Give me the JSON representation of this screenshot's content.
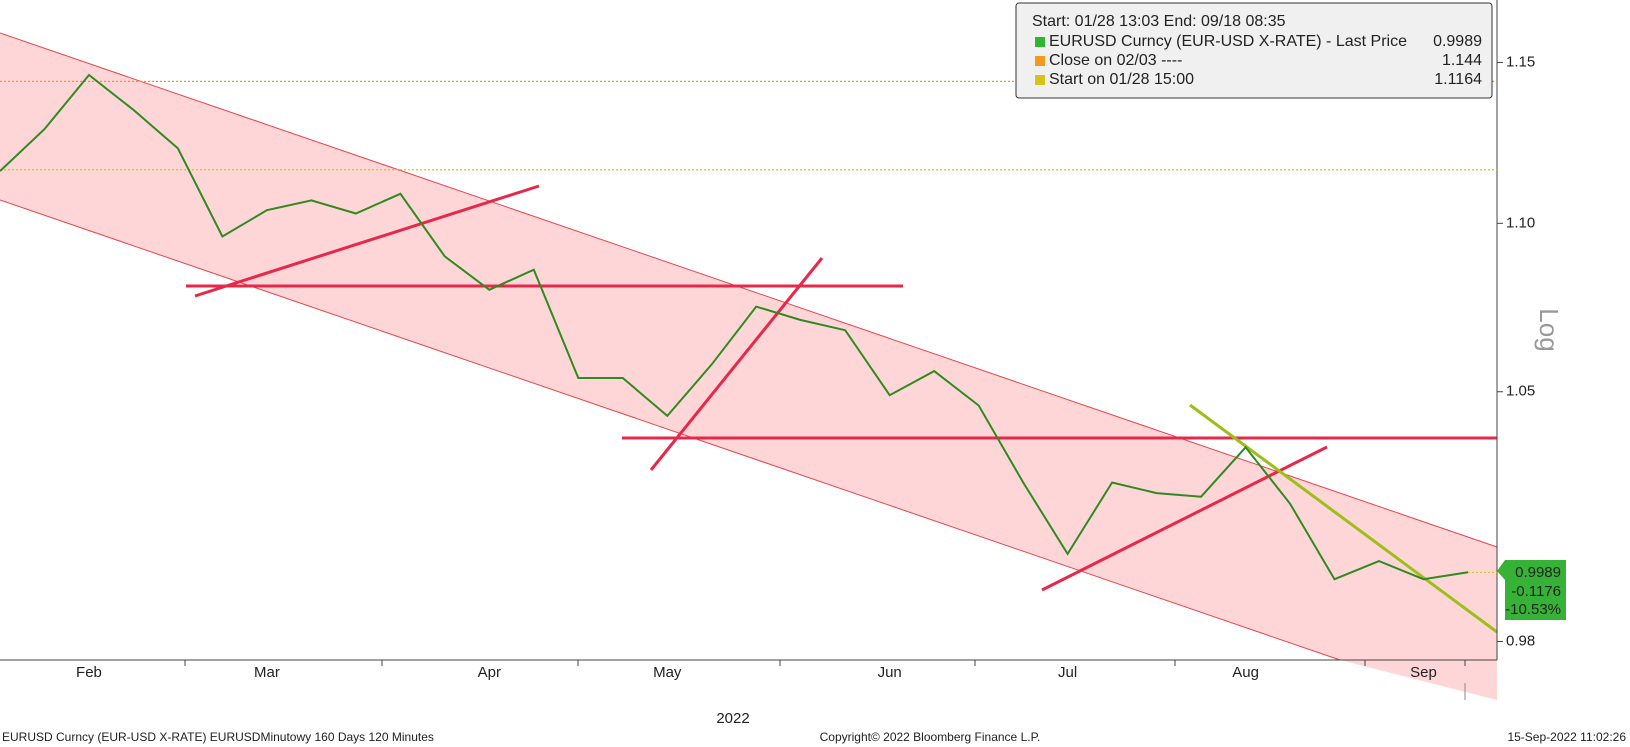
{
  "chart_data": {
    "type": "line",
    "log_scale": true,
    "x_label": "2022",
    "y_label": "Log",
    "categories": [
      null,
      null,
      "Feb",
      null,
      null,
      null,
      "Mar",
      null,
      null,
      null,
      null,
      "Apr",
      null,
      null,
      null,
      "May",
      null,
      null,
      null,
      null,
      "Jun",
      null,
      null,
      null,
      "Jul",
      null,
      null,
      null,
      "Aug",
      null,
      null,
      null,
      "Sep",
      null
    ],
    "series": [
      {
        "name": "EURUSD Curncy (EUR-USD X-RATE) - Last Price",
        "color": "#2f8a1f",
        "values": [
          1.116,
          1.129,
          1.146,
          1.135,
          1.123,
          1.096,
          1.104,
          1.107,
          1.103,
          1.109,
          1.09,
          1.08,
          1.086,
          1.054,
          1.054,
          1.043,
          1.058,
          1.075,
          1.071,
          1.068,
          1.049,
          1.056,
          1.046,
          1.024,
          1.004,
          1.024,
          1.021,
          1.02,
          1.034,
          1.018,
          0.997,
          1.002,
          0.997,
          0.9989
        ]
      }
    ],
    "ylim": [
      0.975,
      1.17
    ],
    "yticks": [
      0.98,
      1.05,
      {
        "value": 1.1,
        "label": "1.10"
      },
      1.15
    ],
    "legend": {
      "title": "Start: 01/28 13:03 End: 09/18 08:35",
      "items": [
        {
          "name": "EURUSD Curncy (EUR-USD X-RATE) - Last Price",
          "value": 0.9989,
          "color": "#2fb52f"
        },
        {
          "name": "Close on 02/03 ----",
          "value": 1.144,
          "color": "#f39a1e"
        },
        {
          "name": "Start on 01/28 15:00",
          "value": 1.1164,
          "color": "#d8c21a"
        }
      ]
    },
    "last_labels": [
      "-0.1176",
      "-10.53%"
    ],
    "footer": {
      "left": "EURUSD Curncy (EUR-USD X-RATE) EURUSDMinutowy 160 Days 120 Minutes",
      "center": "Copyright© 2022 Bloomberg Finance L.P.",
      "right": "15-Sep-2022 11:02:26"
    }
  }
}
